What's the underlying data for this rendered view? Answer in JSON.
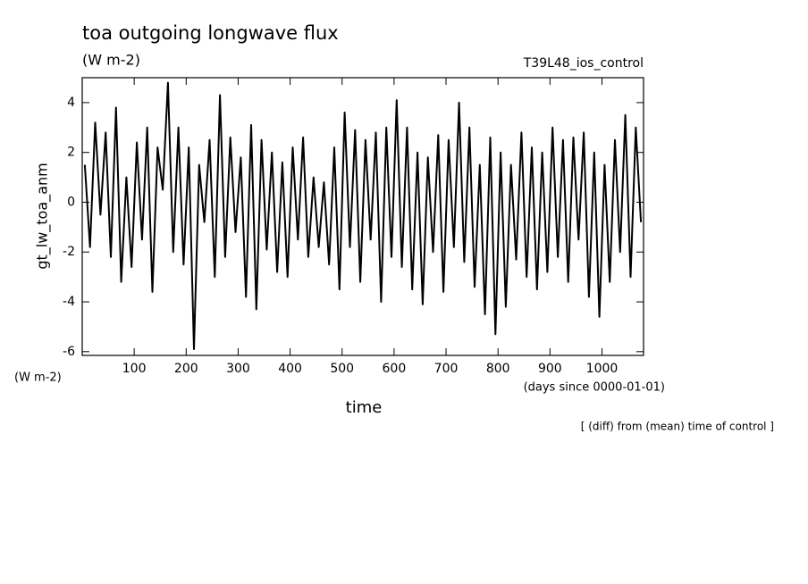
{
  "chart_data": {
    "type": "line",
    "title": "toa outgoing longwave flux",
    "subtitle": "(W m-2)",
    "annotation_right": "T39L48_ios_control",
    "y_label": "gt_lw_toa_anm",
    "y_units": "(W m-2)",
    "x_label": "time",
    "x_units": "(days since 0000-01-01)",
    "footnote": "[ (diff) from (mean) time of control ]",
    "x": [
      5,
      15,
      25,
      35,
      45,
      55,
      65,
      75,
      85,
      95,
      105,
      115,
      125,
      135,
      145,
      155,
      165,
      175,
      185,
      195,
      205,
      215,
      225,
      235,
      245,
      255,
      265,
      275,
      285,
      295,
      305,
      315,
      325,
      335,
      345,
      355,
      365,
      375,
      385,
      395,
      405,
      415,
      425,
      435,
      445,
      455,
      465,
      475,
      485,
      495,
      505,
      515,
      525,
      535,
      545,
      555,
      565,
      575,
      585,
      595,
      605,
      615,
      625,
      635,
      645,
      655,
      665,
      675,
      685,
      695,
      705,
      715,
      725,
      735,
      745,
      755,
      765,
      775,
      785,
      795,
      805,
      815,
      825,
      835,
      845,
      855,
      865,
      875,
      885,
      895,
      905,
      915,
      925,
      935,
      945,
      955,
      965,
      975,
      985,
      995,
      1005,
      1015,
      1025,
      1035,
      1045,
      1055,
      1065,
      1075
    ],
    "series": [
      {
        "name": "gt_lw_toa_anm",
        "color": "#000000",
        "values": [
          1.5,
          -1.8,
          3.2,
          -0.5,
          2.8,
          -2.2,
          3.8,
          -3.2,
          1.0,
          -2.6,
          2.4,
          -1.5,
          3.0,
          -3.6,
          2.2,
          0.5,
          4.8,
          -2.0,
          3.0,
          -2.5,
          2.2,
          -5.9,
          1.5,
          -0.8,
          2.5,
          -3.0,
          4.3,
          -2.2,
          2.6,
          -1.2,
          1.8,
          -3.8,
          3.1,
          -4.3,
          2.5,
          -1.9,
          2.0,
          -2.8,
          1.6,
          -3.0,
          2.2,
          -1.5,
          2.6,
          -2.2,
          1.0,
          -1.8,
          0.8,
          -2.5,
          2.2,
          -3.5,
          3.6,
          -1.8,
          2.9,
          -3.2,
          2.5,
          -1.5,
          2.8,
          -4.0,
          3.0,
          -2.2,
          4.1,
          -2.6,
          3.0,
          -3.5,
          2.0,
          -4.1,
          1.8,
          -2.0,
          2.7,
          -3.6,
          2.5,
          -1.8,
          4.0,
          -2.4,
          3.0,
          -3.4,
          1.5,
          -4.5,
          2.6,
          -5.3,
          2.0,
          -4.2,
          1.5,
          -2.3,
          2.8,
          -3.0,
          2.2,
          -3.5,
          2.0,
          -2.8,
          3.0,
          -2.2,
          2.5,
          -3.2,
          2.6,
          -1.5,
          2.8,
          -3.8,
          2.0,
          -4.6,
          1.5,
          -3.2,
          2.5,
          -2.0,
          3.5,
          -3.0,
          3.0,
          -0.8
        ]
      }
    ],
    "xlim": [
      0,
      1080
    ],
    "ylim": [
      -6.15,
      5
    ],
    "xticks": [
      100,
      200,
      300,
      400,
      500,
      600,
      700,
      800,
      900,
      1000
    ],
    "yticks": [
      -6,
      -4,
      -2,
      0,
      2,
      4
    ]
  }
}
